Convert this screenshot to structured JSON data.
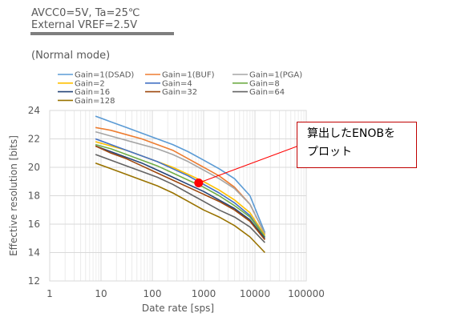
{
  "header": {
    "condition_line1": "AVCC0=5V, Ta=25℃",
    "condition_line2": "External VREF=2.5V",
    "mode": "(Normal mode)"
  },
  "callout": {
    "line1": "算出したENOBを",
    "line2": "プロット"
  },
  "chart_data": {
    "type": "line",
    "title": "",
    "xlabel": "Date rate [sps]",
    "ylabel": "Effective resolution [bits]",
    "xscale": "log",
    "xlim": [
      1,
      100000
    ],
    "ylim": [
      12,
      24
    ],
    "x_ticks": [
      "1",
      "10",
      "100",
      "1000",
      "10000",
      "100000"
    ],
    "y_ticks": [
      "12",
      "14",
      "16",
      "18",
      "20",
      "22",
      "24"
    ],
    "grid": true,
    "legend_position": "top",
    "x": [
      7.8,
      15.6,
      31.25,
      62.5,
      125,
      250,
      500,
      1000,
      2000,
      4000,
      8000,
      15625
    ],
    "series": [
      {
        "name": "Gain=1(DSAD)",
        "color": "#5b9bd5",
        "values": [
          23.6,
          23.2,
          22.8,
          22.4,
          22.0,
          21.6,
          21.1,
          20.5,
          19.9,
          19.2,
          18.0,
          15.4
        ]
      },
      {
        "name": "Gain=1(BUF)",
        "color": "#ed7d31",
        "values": [
          22.8,
          22.6,
          22.3,
          22.0,
          21.6,
          21.2,
          20.6,
          20.0,
          19.4,
          18.6,
          17.4,
          15.3
        ]
      },
      {
        "name": "Gain=1(PGA)",
        "color": "#a5a5a5",
        "values": [
          22.5,
          22.2,
          21.9,
          21.6,
          21.3,
          20.9,
          20.4,
          19.8,
          19.2,
          18.5,
          17.4,
          15.3
        ]
      },
      {
        "name": "Gain=2",
        "color": "#ffc000",
        "values": [
          21.8,
          21.5,
          21.2,
          20.8,
          20.4,
          20.0,
          19.5,
          19.0,
          18.4,
          17.7,
          16.8,
          15.2
        ]
      },
      {
        "name": "Gain=4",
        "color": "#4472c4",
        "values": [
          22.0,
          21.6,
          21.2,
          20.8,
          20.4,
          19.9,
          19.4,
          18.8,
          18.2,
          17.5,
          16.6,
          15.1
        ]
      },
      {
        "name": "Gain=8",
        "color": "#70ad47",
        "values": [
          21.6,
          21.3,
          20.9,
          20.5,
          20.1,
          19.6,
          19.1,
          18.6,
          18.0,
          17.3,
          16.5,
          15.1
        ]
      },
      {
        "name": "Gain=16",
        "color": "#264478",
        "values": [
          21.5,
          21.1,
          20.7,
          20.3,
          19.8,
          19.3,
          18.8,
          18.3,
          17.7,
          17.1,
          16.3,
          15.0
        ]
      },
      {
        "name": "Gain=32",
        "color": "#9e480e",
        "values": [
          21.5,
          21.0,
          20.6,
          20.1,
          19.6,
          19.1,
          18.6,
          18.1,
          17.6,
          17.0,
          16.2,
          14.9
        ]
      },
      {
        "name": "Gain=64",
        "color": "#636363",
        "values": [
          20.9,
          20.5,
          20.1,
          19.7,
          19.3,
          18.8,
          18.2,
          17.6,
          17.0,
          16.5,
          15.8,
          14.7
        ]
      },
      {
        "name": "Gain=128",
        "color": "#997300",
        "values": [
          20.3,
          19.9,
          19.5,
          19.1,
          18.7,
          18.2,
          17.6,
          17.0,
          16.5,
          15.9,
          15.1,
          14.0
        ]
      }
    ],
    "highlight_point": {
      "x": 800,
      "y": 18.9,
      "color": "#ff0000"
    }
  }
}
